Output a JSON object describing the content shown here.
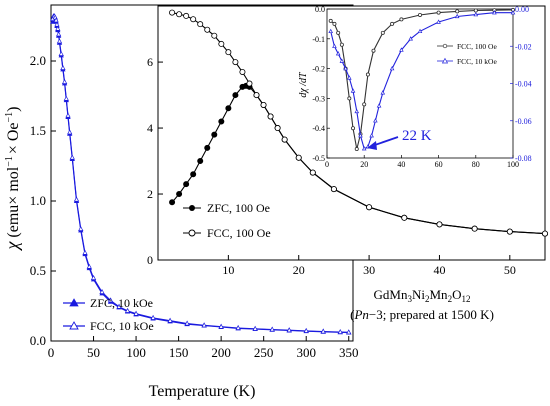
{
  "chart_data": [
    {
      "id": "main",
      "type": "line",
      "xlabel": "Temperature (K)",
      "ylabel": "χ (emu× mol⁻¹ × Oe⁻¹)",
      "ylabel_parts": {
        "chi": "χ",
        "units": "(emu× mol",
        "sup1": "−1",
        "mid": "× Oe",
        "sup2": "−1",
        "close": ")"
      },
      "xlim": [
        0,
        355
      ],
      "ylim": [
        0,
        2.4
      ],
      "xticks": [
        "0",
        "50",
        "100",
        "150",
        "200",
        "250",
        "300",
        "350"
      ],
      "yticks": [
        "0.0",
        "0.5",
        "1.0",
        "1.5",
        "2.0"
      ],
      "legend_position": "bottom-left",
      "series": [
        {
          "name": "ZFC, 10 kOe",
          "color": "#1a1adf",
          "marker": "filled-triangle",
          "x": [
            2,
            3,
            4,
            5,
            6,
            7,
            8,
            9,
            10,
            12,
            14,
            16,
            18,
            20,
            22,
            25,
            30,
            35,
            40,
            45,
            50,
            60,
            70,
            80,
            90,
            100,
            120,
            140,
            160,
            180,
            200,
            220,
            240,
            260,
            280,
            300,
            320,
            340,
            350
          ],
          "values": [
            2.28,
            2.3,
            2.31,
            2.3,
            2.28,
            2.25,
            2.22,
            2.18,
            2.13,
            2.04,
            1.94,
            1.84,
            1.72,
            1.6,
            1.48,
            1.3,
            1.0,
            0.79,
            0.62,
            0.52,
            0.44,
            0.34,
            0.28,
            0.24,
            0.21,
            0.19,
            0.16,
            0.14,
            0.12,
            0.11,
            0.1,
            0.09,
            0.085,
            0.08,
            0.075,
            0.07,
            0.066,
            0.062,
            0.06
          ]
        },
        {
          "name": "FCC, 10 kOe",
          "color": "#1a1adf",
          "marker": "open-triangle",
          "x": [
            2,
            3,
            4,
            5,
            6,
            7,
            8,
            9,
            10,
            12,
            14,
            16,
            18,
            20,
            22,
            25,
            30,
            35,
            40,
            45,
            50,
            60,
            70,
            80,
            90,
            100,
            120,
            140,
            160,
            180,
            200,
            220,
            240,
            260,
            280,
            300,
            320,
            340,
            350
          ],
          "values": [
            2.3,
            2.32,
            2.32,
            2.31,
            2.29,
            2.26,
            2.23,
            2.19,
            2.14,
            2.05,
            1.95,
            1.85,
            1.73,
            1.61,
            1.49,
            1.31,
            1.01,
            0.8,
            0.63,
            0.53,
            0.45,
            0.35,
            0.29,
            0.245,
            0.215,
            0.195,
            0.165,
            0.145,
            0.125,
            0.112,
            0.102,
            0.093,
            0.087,
            0.082,
            0.077,
            0.072,
            0.068,
            0.064,
            0.062
          ]
        }
      ],
      "annotation": {
        "formula_parts": [
          "GdMn",
          "3",
          "Ni",
          "2",
          "Mn",
          "2",
          "O",
          "12"
        ],
        "note_italic": "Pn",
        "note_rest": "−3; prepared at 1500 K)",
        "note_open": "("
      }
    },
    {
      "id": "inset-1",
      "type": "line",
      "xlim": [
        0,
        55
      ],
      "ylim": [
        0,
        7.7
      ],
      "xticks": [
        "10",
        "20",
        "30",
        "40",
        "50"
      ],
      "yticks": [
        "0",
        "2",
        "4",
        "6"
      ],
      "legend_position": "bottom-left",
      "series": [
        {
          "name": "ZFC, 100 Oe",
          "color": "#000000",
          "marker": "filled-circle",
          "x": [
            2,
            3,
            4,
            5,
            6,
            7,
            8,
            9,
            10,
            11,
            12,
            12.5,
            13,
            14,
            15,
            16,
            17,
            18,
            20,
            22,
            25,
            30,
            35,
            40,
            45,
            50,
            55
          ],
          "values": [
            1.75,
            2.0,
            2.3,
            2.6,
            3.0,
            3.4,
            3.8,
            4.2,
            4.6,
            5.0,
            5.25,
            5.28,
            5.25,
            5.0,
            4.7,
            4.35,
            4.0,
            3.65,
            3.1,
            2.65,
            2.15,
            1.6,
            1.28,
            1.08,
            0.95,
            0.86,
            0.8
          ]
        },
        {
          "name": "FCC, 100 Oe",
          "color": "#000000",
          "marker": "open-circle",
          "x": [
            2,
            3,
            4,
            5,
            6,
            7,
            8,
            9,
            10,
            11,
            12,
            13,
            14,
            15,
            16,
            17,
            18,
            20,
            22,
            25,
            30,
            35,
            40,
            45,
            50,
            55
          ],
          "values": [
            7.5,
            7.45,
            7.4,
            7.3,
            7.15,
            6.98,
            6.8,
            6.55,
            6.3,
            6.0,
            5.7,
            5.35,
            5.0,
            4.7,
            4.35,
            4.0,
            3.65,
            3.1,
            2.65,
            2.15,
            1.6,
            1.28,
            1.08,
            0.95,
            0.86,
            0.8
          ]
        }
      ]
    },
    {
      "id": "inset-2",
      "type": "line",
      "ylabel": "dχ /dT",
      "xlim": [
        0,
        100
      ],
      "ylim": [
        -0.5,
        0
      ],
      "y2lim": [
        -0.08,
        0
      ],
      "xticks": [
        "0",
        "20",
        "40",
        "60",
        "80",
        "100"
      ],
      "yticks": [
        "0.0",
        "-0.1",
        "-0.2",
        "-0.3",
        "-0.4",
        "-0.5"
      ],
      "y2ticks": [
        "0.00",
        "-0.02",
        "-0.04",
        "-0.06",
        "-0.08"
      ],
      "legend_position": "top-right",
      "peak_label": "22 K",
      "series": [
        {
          "name": "FCC, 100 Oe",
          "color": "#333333",
          "marker": "open-circle",
          "axis": "left",
          "x": [
            2,
            4,
            6,
            8,
            10,
            12,
            14,
            16,
            18,
            20,
            22,
            25,
            30,
            35,
            40,
            50,
            60,
            70,
            80,
            90,
            100
          ],
          "values": [
            -0.04,
            -0.05,
            -0.08,
            -0.12,
            -0.2,
            -0.3,
            -0.4,
            -0.47,
            -0.42,
            -0.32,
            -0.22,
            -0.14,
            -0.08,
            -0.05,
            -0.035,
            -0.02,
            -0.012,
            -0.008,
            -0.005,
            -0.004,
            -0.003
          ]
        },
        {
          "name": "FCC, 10 kOe",
          "color": "#2222dd",
          "marker": "open-triangle",
          "axis": "right",
          "x": [
            2,
            4,
            6,
            8,
            10,
            12,
            14,
            16,
            18,
            20,
            22,
            24,
            26,
            28,
            30,
            35,
            40,
            45,
            50,
            60,
            70,
            80,
            90,
            100
          ],
          "values": [
            -0.012,
            -0.02,
            -0.024,
            -0.028,
            -0.032,
            -0.037,
            -0.044,
            -0.055,
            -0.068,
            -0.075,
            -0.074,
            -0.068,
            -0.06,
            -0.052,
            -0.045,
            -0.032,
            -0.022,
            -0.016,
            -0.012,
            -0.007,
            -0.004,
            -0.003,
            -0.002,
            -0.002
          ]
        }
      ]
    }
  ]
}
